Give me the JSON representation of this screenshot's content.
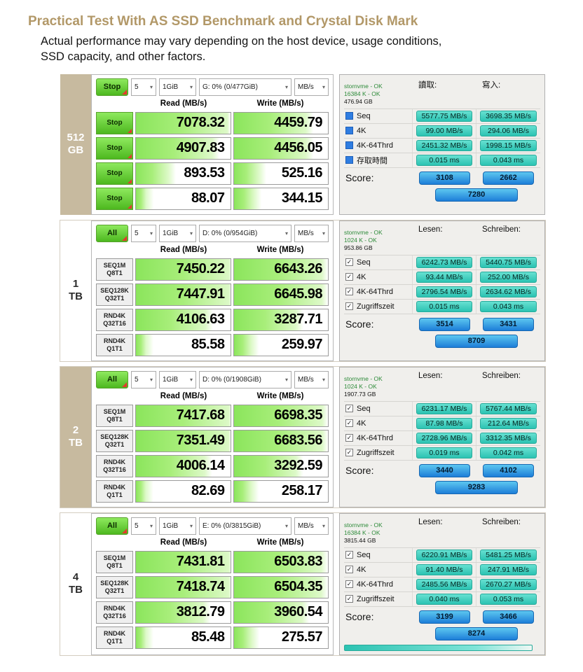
{
  "header": {
    "title": "Practical Test With AS SSD Benchmark and Crystal Disk Mark",
    "subtitle_line1": "Actual performance may vary depending on the host device, usage conditions,",
    "subtitle_line2": "SSD capacity, and other factors."
  },
  "icons": {
    "dropdown_arrow": "▾",
    "checkbox_checked": "✓"
  },
  "colors": {
    "title_tan": "#b29868",
    "capacity_tan": "#c7ba9f",
    "cdm_green": "#6fd83a",
    "as_chip_teal": "#2cc3b2",
    "score_blue": "#1d7ed8",
    "info_green": "#2e8b3a",
    "triangle_red": "#e23b2e"
  },
  "panels": [
    {
      "capacity_top": "512",
      "capacity_bottom": "GB",
      "highlight": true,
      "cdm": {
        "main_button": "Stop",
        "run_count": "5",
        "test_size": "1GiB",
        "drive": "G: 0% (0/477GiB)",
        "unit": "MB/s",
        "read_header": "Read (MB/s)",
        "write_header": "Write (MB/s)",
        "row_style": "stop",
        "rows": [
          {
            "label1": "Stop",
            "label2": "",
            "read": "7078.32",
            "write": "4459.79"
          },
          {
            "label1": "Stop",
            "label2": "",
            "read": "4907.83",
            "write": "4456.05"
          },
          {
            "label1": "Stop",
            "label2": "",
            "read": "893.53",
            "write": "525.16"
          },
          {
            "label1": "Stop",
            "label2": "",
            "read": "88.07",
            "write": "344.15"
          }
        ]
      },
      "asssd": {
        "info1": "stornvme - OK",
        "info2": "16384 K - OK",
        "info3": "476.94 GB",
        "read_header": "讀取:",
        "write_header": "寫入:",
        "checkbox_style": "blue",
        "rows": [
          {
            "label": "Seq",
            "read": "5577.75 MB/s",
            "write": "3698.35 MB/s"
          },
          {
            "label": "4K",
            "read": "99.00 MB/s",
            "write": "294.06 MB/s"
          },
          {
            "label": "4K-64Thrd",
            "read": "2451.32 MB/s",
            "write": "1998.15 MB/s"
          },
          {
            "label": "存取時間",
            "read": "0.015 ms",
            "write": "0.043 ms"
          }
        ],
        "score_label": "Score:",
        "score_read": "3108",
        "score_write": "2662",
        "score_total": "7280",
        "progress_bar": false
      }
    },
    {
      "capacity_top": "1",
      "capacity_bottom": "TB",
      "highlight": false,
      "cdm": {
        "main_button": "All",
        "run_count": "5",
        "test_size": "1GiB",
        "drive": "D: 0% (0/954GiB)",
        "unit": "MB/s",
        "read_header": "Read (MB/s)",
        "write_header": "Write (MB/s)",
        "row_style": "seq",
        "rows": [
          {
            "label1": "SEQ1M",
            "label2": "Q8T1",
            "read": "7450.22",
            "write": "6643.26"
          },
          {
            "label1": "SEQ128K",
            "label2": "Q32T1",
            "read": "7447.91",
            "write": "6645.98"
          },
          {
            "label1": "RND4K",
            "label2": "Q32T16",
            "read": "4106.63",
            "write": "3287.71"
          },
          {
            "label1": "RND4K",
            "label2": "Q1T1",
            "read": "85.58",
            "write": "259.97"
          }
        ]
      },
      "asssd": {
        "info1": "stornvme - OK",
        "info2": "1024 K - OK",
        "info3": "953.86 GB",
        "read_header": "Lesen:",
        "write_header": "Schreiben:",
        "checkbox_style": "check",
        "rows": [
          {
            "label": "Seq",
            "read": "6242.73 MB/s",
            "write": "5440.75 MB/s"
          },
          {
            "label": "4K",
            "read": "93.44 MB/s",
            "write": "252.00 MB/s"
          },
          {
            "label": "4K-64Thrd",
            "read": "2796.54 MB/s",
            "write": "2634.62 MB/s"
          },
          {
            "label": "Zugriffszeit",
            "read": "0.015 ms",
            "write": "0.043 ms"
          }
        ],
        "score_label": "Score:",
        "score_read": "3514",
        "score_write": "3431",
        "score_total": "8709",
        "progress_bar": false
      }
    },
    {
      "capacity_top": "2",
      "capacity_bottom": "TB",
      "highlight": true,
      "cdm": {
        "main_button": "All",
        "run_count": "5",
        "test_size": "1GiB",
        "drive": "D: 0% (0/1908GiB)",
        "unit": "MB/s",
        "read_header": "Read (MB/s)",
        "write_header": "Write (MB/s)",
        "row_style": "seq",
        "rows": [
          {
            "label1": "SEQ1M",
            "label2": "Q8T1",
            "read": "7417.68",
            "write": "6698.35"
          },
          {
            "label1": "SEQ128K",
            "label2": "Q32T1",
            "read": "7351.49",
            "write": "6683.56"
          },
          {
            "label1": "RND4K",
            "label2": "Q32T16",
            "read": "4006.14",
            "write": "3292.59"
          },
          {
            "label1": "RND4K",
            "label2": "Q1T1",
            "read": "82.69",
            "write": "258.17"
          }
        ]
      },
      "asssd": {
        "info1": "stornvme - OK",
        "info2": "1024 K - OK",
        "info3": "1907.73 GB",
        "read_header": "Lesen:",
        "write_header": "Schreiben:",
        "checkbox_style": "check",
        "rows": [
          {
            "label": "Seq",
            "read": "6231.17 MB/s",
            "write": "5767.44 MB/s"
          },
          {
            "label": "4K",
            "read": "87.98 MB/s",
            "write": "212.64 MB/s"
          },
          {
            "label": "4K-64Thrd",
            "read": "2728.96 MB/s",
            "write": "3312.35 MB/s"
          },
          {
            "label": "Zugriffszeit",
            "read": "0.019 ms",
            "write": "0.042 ms"
          }
        ],
        "score_label": "Score:",
        "score_read": "3440",
        "score_write": "4102",
        "score_total": "9283",
        "progress_bar": false
      }
    },
    {
      "capacity_top": "4",
      "capacity_bottom": "TB",
      "highlight": false,
      "cdm": {
        "main_button": "All",
        "run_count": "5",
        "test_size": "1GiB",
        "drive": "E: 0% (0/3815GiB)",
        "unit": "MB/s",
        "read_header": "Read (MB/s)",
        "write_header": "Write (MB/s)",
        "row_style": "seq",
        "rows": [
          {
            "label1": "SEQ1M",
            "label2": "Q8T1",
            "read": "7431.81",
            "write": "6503.83"
          },
          {
            "label1": "SEQ128K",
            "label2": "Q32T1",
            "read": "7418.74",
            "write": "6504.35"
          },
          {
            "label1": "RND4K",
            "label2": "Q32T16",
            "read": "3812.79",
            "write": "3960.54"
          },
          {
            "label1": "RND4K",
            "label2": "Q1T1",
            "read": "85.48",
            "write": "275.57"
          }
        ]
      },
      "asssd": {
        "info1": "stornvme - OK",
        "info2": "16384 K - OK",
        "info3": "3815.44 GB",
        "read_header": "Lesen:",
        "write_header": "Schreiben:",
        "checkbox_style": "check",
        "rows": [
          {
            "label": "Seq",
            "read": "6220.91 MB/s",
            "write": "5481.25 MB/s"
          },
          {
            "label": "4K",
            "read": "91.40 MB/s",
            "write": "247.91 MB/s"
          },
          {
            "label": "4K-64Thrd",
            "read": "2485.56 MB/s",
            "write": "2670.27 MB/s"
          },
          {
            "label": "Zugriffszeit",
            "read": "0.040 ms",
            "write": "0.053 ms"
          }
        ],
        "score_label": "Score:",
        "score_read": "3199",
        "score_write": "3466",
        "score_total": "8274",
        "progress_bar": true
      }
    }
  ]
}
